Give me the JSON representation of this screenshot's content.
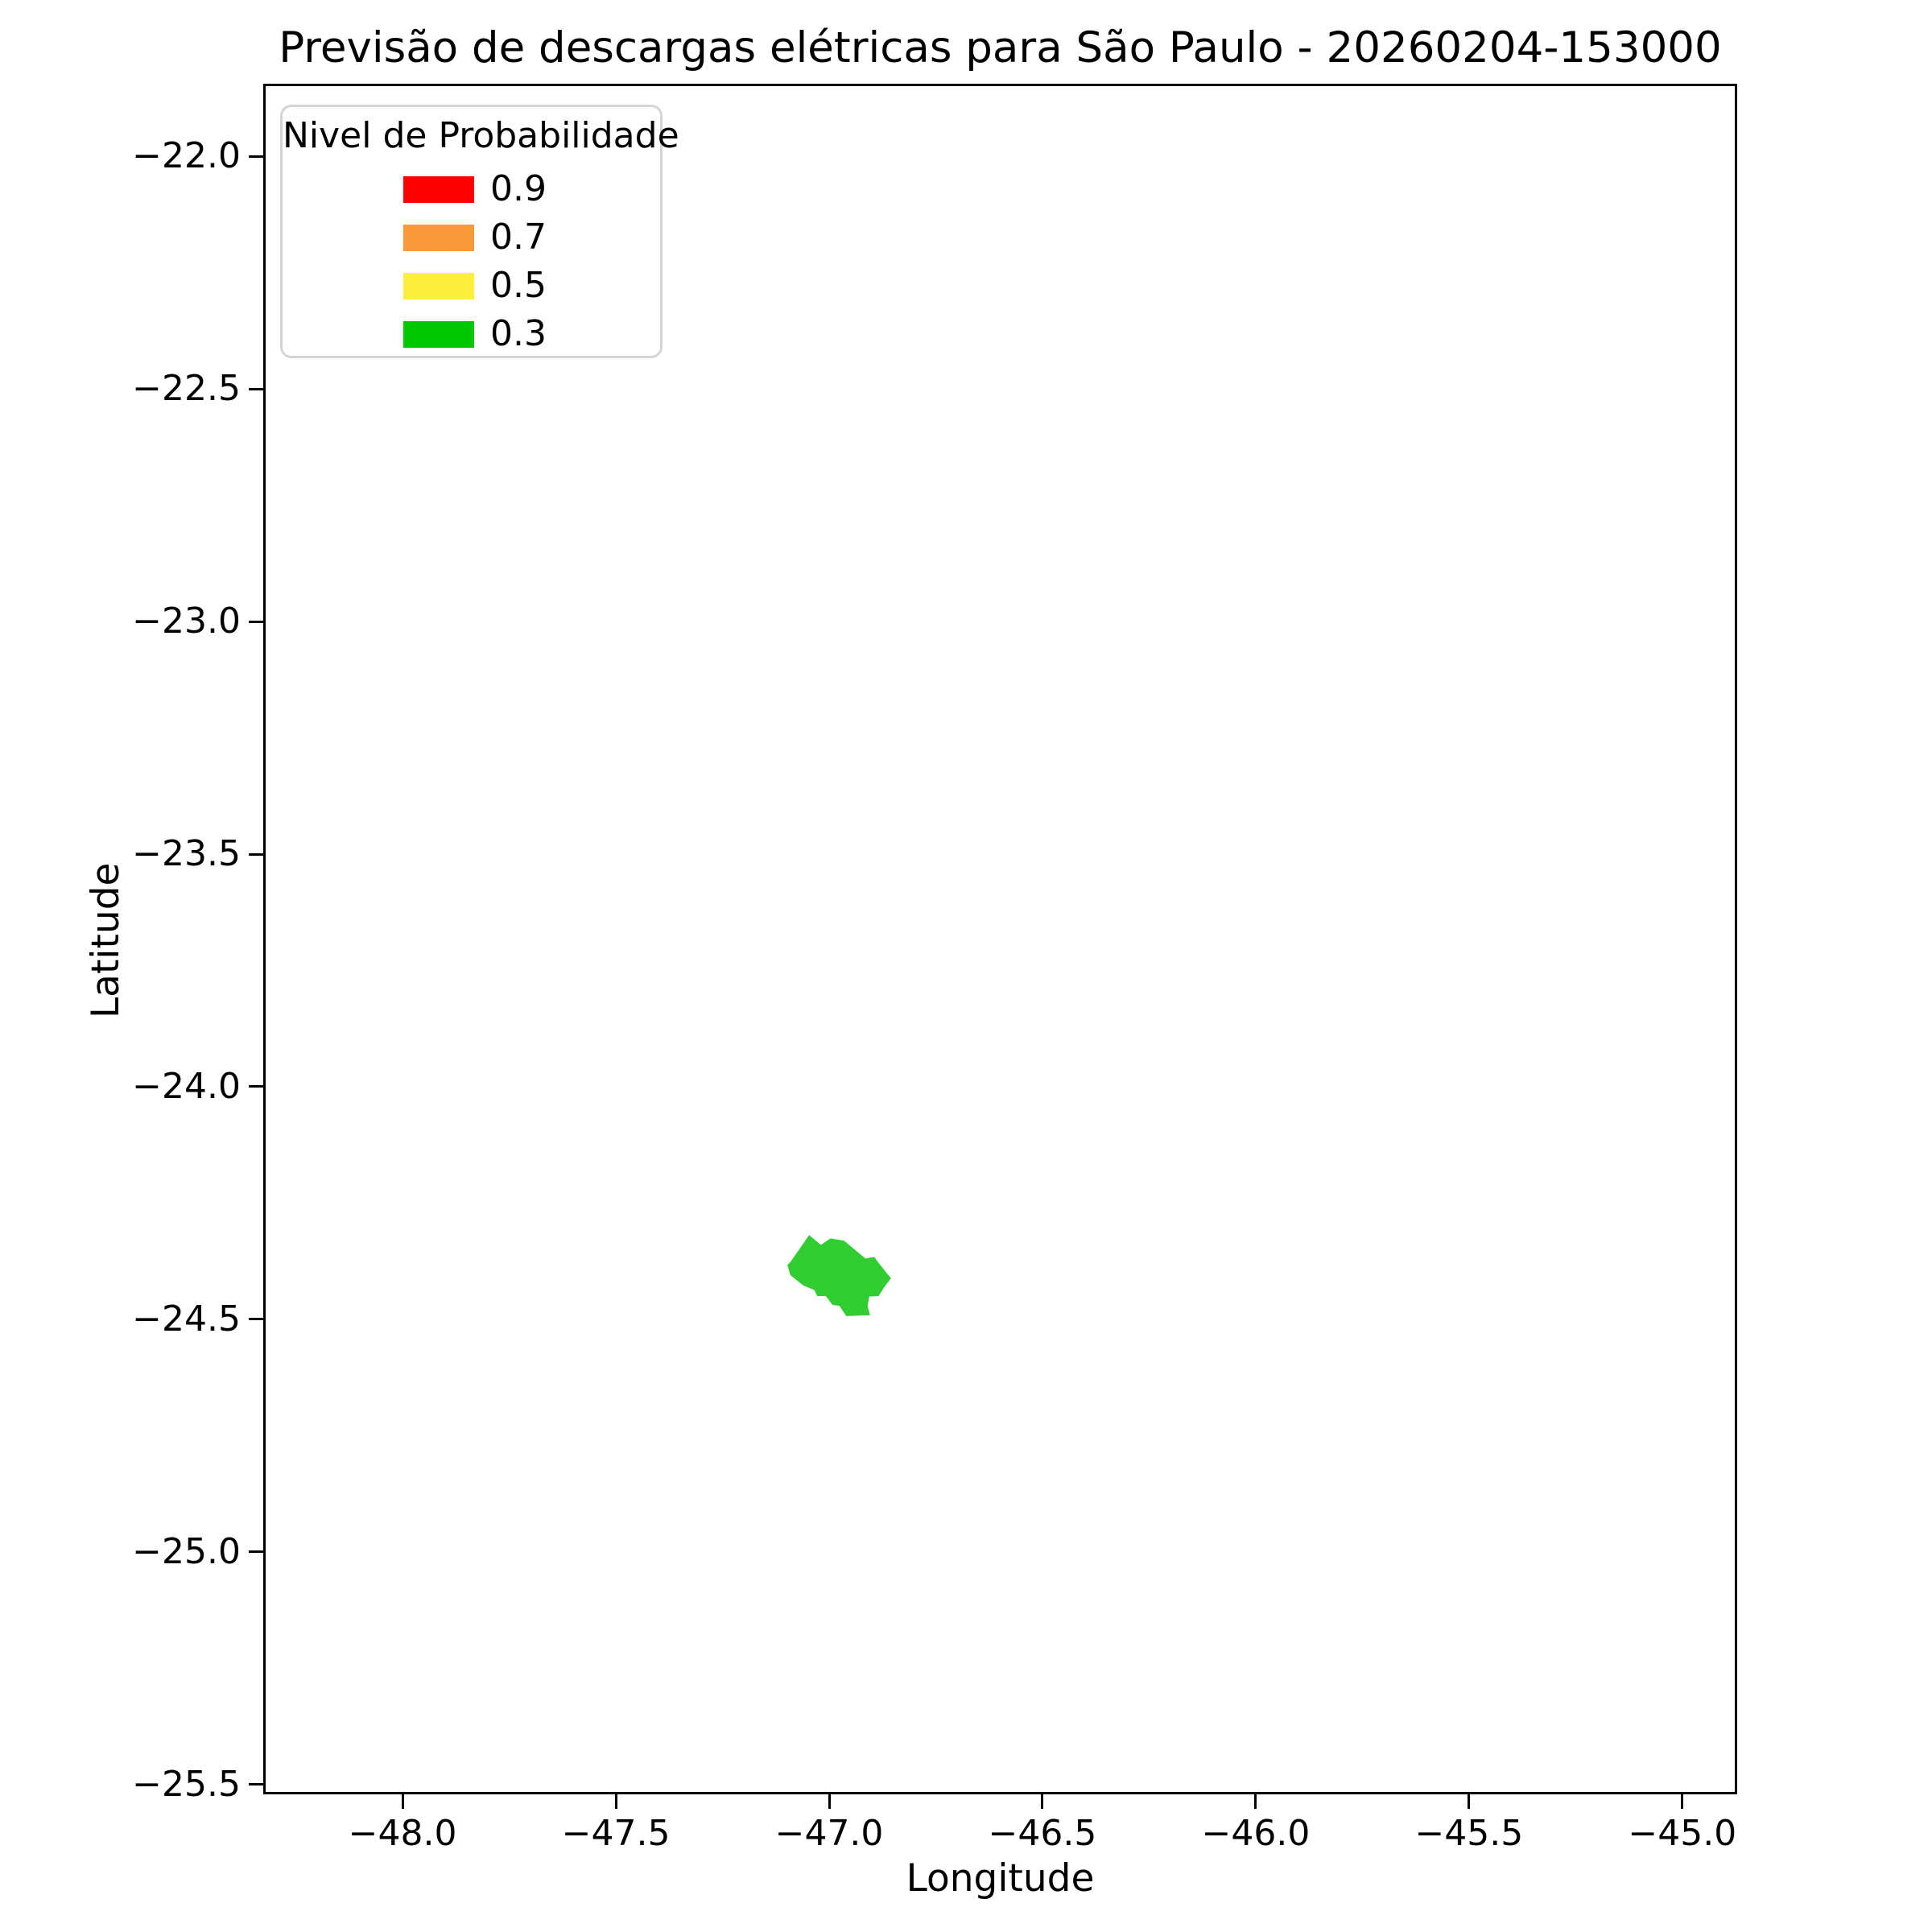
{
  "title": "Previsão de descargas elétricas para São Paulo - 20260204-153000",
  "colors": {
    "background": "#ffffff",
    "axis": "#000000",
    "text": "#000000",
    "legend_border": "#d5d5d5",
    "prob_09": "#ff0000",
    "prob_07": "#fb9a3c",
    "prob_05": "#fcef3c",
    "prob_03": "#00c800",
    "polygon_fill": "#32cd32"
  },
  "chart_data": {
    "type": "area",
    "subtype": "choropleth-map-polygon",
    "title": "Previsão de descargas elétricas para São Paulo - 20260204-153000",
    "xlabel": "Longitude",
    "ylabel": "Latitude",
    "xlim": [
      -48.321,
      -44.877
    ],
    "ylim": [
      -25.516,
      -21.849
    ],
    "xticks": [
      -48.0,
      -47.5,
      -47.0,
      -46.5,
      -46.0,
      -45.5,
      -45.0
    ],
    "yticks": [
      -22.0,
      -22.5,
      -23.0,
      -23.5,
      -24.0,
      -24.5,
      -25.0,
      -25.5
    ],
    "grid": false,
    "legend": {
      "title": "Nivel de Probabilidade",
      "position": "upper left",
      "entries": [
        {
          "label": "0.9",
          "color": "#ff0000"
        },
        {
          "label": "0.7",
          "color": "#fb9a3c"
        },
        {
          "label": "0.5",
          "color": "#fcef3c"
        },
        {
          "label": "0.3",
          "color": "#00c800"
        }
      ]
    },
    "polygons": [
      {
        "probability_level": "0.3",
        "color": "#32cd32",
        "points": [
          [
            -47.047,
            -24.319
          ],
          [
            -47.019,
            -24.34
          ],
          [
            -46.997,
            -24.326
          ],
          [
            -46.965,
            -24.331
          ],
          [
            -46.915,
            -24.369
          ],
          [
            -46.894,
            -24.366
          ],
          [
            -46.887,
            -24.375
          ],
          [
            -46.871,
            -24.394
          ],
          [
            -46.855,
            -24.412
          ],
          [
            -46.871,
            -24.431
          ],
          [
            -46.884,
            -24.45
          ],
          [
            -46.906,
            -24.451
          ],
          [
            -46.91,
            -24.472
          ],
          [
            -46.904,
            -24.491
          ],
          [
            -46.96,
            -24.493
          ],
          [
            -46.976,
            -24.471
          ],
          [
            -46.992,
            -24.469
          ],
          [
            -47.008,
            -24.45
          ],
          [
            -47.028,
            -24.45
          ],
          [
            -47.035,
            -24.437
          ],
          [
            -47.061,
            -24.427
          ],
          [
            -47.091,
            -24.405
          ],
          [
            -47.098,
            -24.383
          ],
          [
            -47.091,
            -24.377
          ]
        ]
      }
    ]
  }
}
